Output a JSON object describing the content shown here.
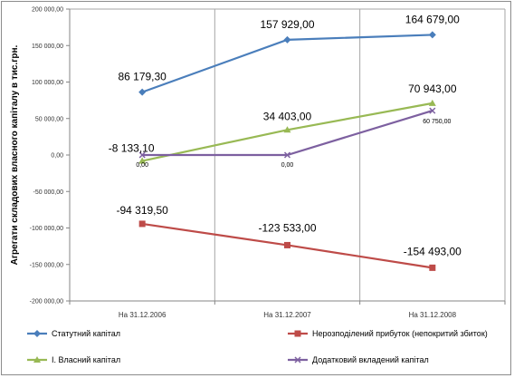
{
  "chart_data": {
    "type": "line",
    "ylabel": "Агрегати складових власного капіталу в тис.грн.",
    "xlabel": "",
    "categories": [
      "На 31.12.2006",
      "На 31.12.2007",
      "На 31.12.2008"
    ],
    "ylim": [
      -200000,
      200000
    ],
    "ytick_step": 50000,
    "ytick_labels": [
      "200 000,00",
      "150 000,00",
      "100 000,00",
      "50 000,00",
      "0,00",
      "-50 000,00",
      "-100 000,00",
      "-150 000,00",
      "-200 000,00"
    ],
    "grid": "vertical",
    "legend_position": "bottom",
    "series": [
      {
        "name": "Статутний капітал",
        "color": "#4a7ebb",
        "marker": "diamond",
        "values": [
          86179.3,
          157929.0,
          164679.0
        ],
        "labels": [
          "86 179,30",
          "157 929,00",
          "164 679,00"
        ],
        "label_size": "big"
      },
      {
        "name": "Нерозподілений прибуток (непокритий збиток)",
        "color": "#be4b48",
        "marker": "square",
        "values": [
          -94319.5,
          -123533.0,
          -154493.0
        ],
        "labels": [
          "-94 319,50",
          "-123 533,00",
          "-154 493,00"
        ],
        "label_size": "big"
      },
      {
        "name": "І. Власний капітал",
        "color": "#98b954",
        "marker": "triangle",
        "values": [
          -8133.1,
          34403.0,
          70943.0
        ],
        "labels": [
          "-8 133,10",
          "34 403,00",
          "70 943,00"
        ],
        "label_size": "big"
      },
      {
        "name": "Додатковий вкладений капітал",
        "color": "#7d60a0",
        "marker": "x",
        "values": [
          0,
          0,
          60750.0
        ],
        "labels": [
          "0,00",
          "0,00",
          "60 750,00"
        ],
        "label_size": "small"
      }
    ]
  }
}
